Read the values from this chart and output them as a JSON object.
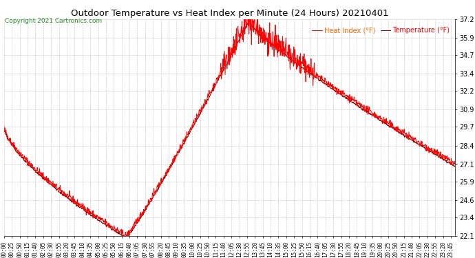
{
  "title": "Outdoor Temperature vs Heat Index per Minute (24 Hours) 20210401",
  "copyright": "Copyright 2021 Cartronics.com",
  "legend_heat": "Heat Index (°F)",
  "legend_temp": "Temperature (°F)",
  "heat_index_color": "#ff0000",
  "temp_color": "#8b0000",
  "background_color": "#ffffff",
  "grid_color": "#bbbbbb",
  "title_fontsize": 9.5,
  "copyright_fontsize": 6.5,
  "legend_fontsize": 7,
  "tick_fontsize": 5.5,
  "ytick_fontsize": 7,
  "ylim": [
    22.1,
    37.2
  ],
  "yticks": [
    22.1,
    23.4,
    24.6,
    25.9,
    27.1,
    28.4,
    29.7,
    30.9,
    32.2,
    33.4,
    34.7,
    35.9,
    37.2
  ],
  "num_minutes": 1440,
  "figwidth": 6.9,
  "figheight": 3.75,
  "dpi": 100
}
